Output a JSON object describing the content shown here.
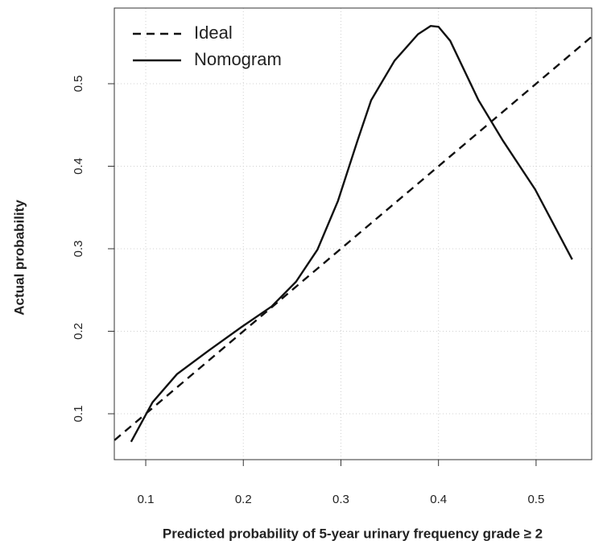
{
  "chart_data": {
    "type": "line",
    "x_label": "Predicted probability of 5-year urinary frequency grade ≥ 2",
    "y_label": "Actual probability",
    "xlim": [
      0.0678,
      0.557
    ],
    "ylim": [
      0.0444,
      0.5917
    ],
    "xticks": [
      0.1,
      0.2,
      0.3,
      0.4,
      0.5
    ],
    "yticks": [
      0.1,
      0.2,
      0.3,
      0.4,
      0.5
    ],
    "grid": true,
    "legend": "top-left",
    "series": [
      {
        "name": "Ideal",
        "color": "#111111",
        "style": "dashed",
        "x": [
          0.068,
          0.557
        ],
        "values": [
          0.068,
          0.557
        ]
      },
      {
        "name": "Nomogram",
        "color": "#111111",
        "style": "solid",
        "x": [
          0.085,
          0.107,
          0.132,
          0.165,
          0.198,
          0.229,
          0.254,
          0.276,
          0.297,
          0.317,
          0.331,
          0.355,
          0.379,
          0.392,
          0.4,
          0.412,
          0.441,
          0.466,
          0.499,
          0.537
        ],
        "values": [
          0.066,
          0.114,
          0.148,
          0.177,
          0.205,
          0.23,
          0.26,
          0.299,
          0.358,
          0.431,
          0.48,
          0.528,
          0.56,
          0.57,
          0.569,
          0.552,
          0.48,
          0.431,
          0.372,
          0.287
        ]
      }
    ]
  }
}
